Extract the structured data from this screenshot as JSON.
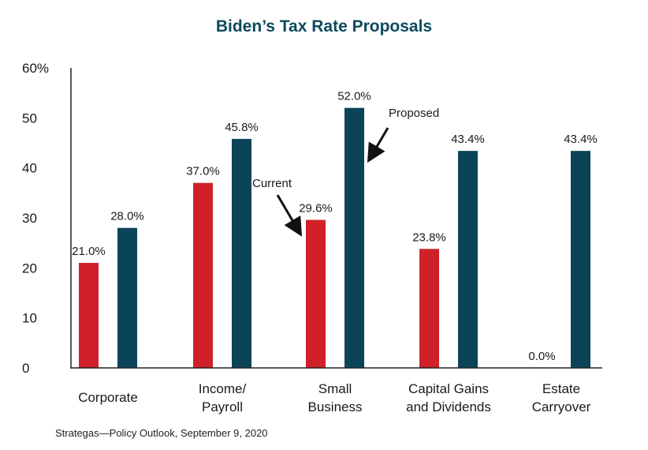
{
  "chart_data": {
    "type": "bar",
    "title": "Biden’s Tax Rate Proposals",
    "categories": [
      [
        "Corporate"
      ],
      [
        "Income/",
        "Payroll"
      ],
      [
        "Small",
        "Business"
      ],
      [
        "Capital Gains",
        "and Dividends"
      ],
      [
        "Estate",
        "Carryover"
      ]
    ],
    "series": [
      {
        "name": "Current",
        "color": "#d0212a",
        "values": [
          21.0,
          37.0,
          29.6,
          23.8,
          0.0
        ]
      },
      {
        "name": "Proposed",
        "color": "#0b4458",
        "values": [
          28.0,
          45.8,
          52.0,
          43.4,
          43.4
        ]
      }
    ],
    "data_labels": [
      [
        "21.0%",
        "37.0%",
        "29.6%",
        "23.8%",
        "0.0%"
      ],
      [
        "28.0%",
        "45.8%",
        "52.0%",
        "43.4%",
        "43.4%"
      ]
    ],
    "ylim": [
      0,
      60
    ],
    "yticks": [
      0,
      10,
      20,
      30,
      40,
      50,
      60
    ],
    "ytick_labels": [
      "0",
      "10",
      "20",
      "30",
      "40",
      "50",
      "60%"
    ],
    "grid": false,
    "annotations": [
      {
        "text": "Current",
        "points_to": "Current"
      },
      {
        "text": "Proposed",
        "points_to": "Proposed"
      }
    ]
  },
  "source": "Strategas—Policy Outlook, September 9, 2020"
}
